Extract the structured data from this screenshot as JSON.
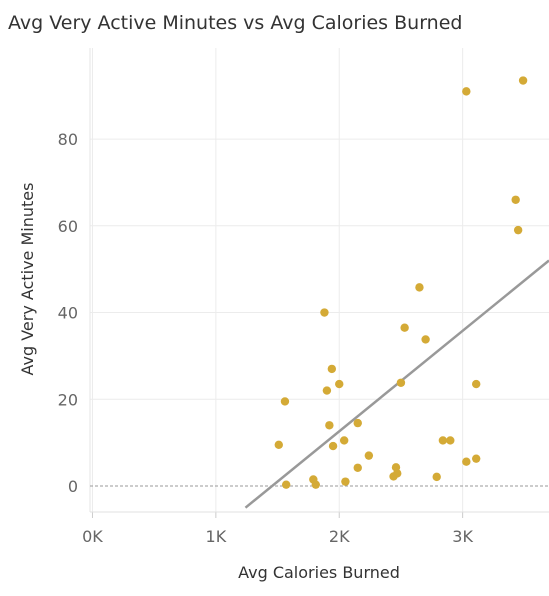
{
  "chart_data": {
    "type": "scatter",
    "title": "Avg Very Active Minutes vs Avg Calories Burned",
    "xlabel": "Avg Calories Burned",
    "ylabel": "Avg Very Active Minutes",
    "x_ticks": [
      {
        "value": 0,
        "label": "0K"
      },
      {
        "value": 1000,
        "label": "1K"
      },
      {
        "value": 2000,
        "label": "2K"
      },
      {
        "value": 3000,
        "label": "3K"
      }
    ],
    "y_ticks": [
      {
        "value": 0,
        "label": "0"
      },
      {
        "value": 20,
        "label": "20"
      },
      {
        "value": 40,
        "label": "40"
      },
      {
        "value": 60,
        "label": "60"
      },
      {
        "value": 80,
        "label": "80"
      }
    ],
    "xlim": [
      -20,
      3700
    ],
    "ylim": [
      -6,
      101
    ],
    "grid": true,
    "zero_line": true,
    "point_color": "#D4AA36",
    "trend_color": "#999999",
    "trend_line": {
      "x": [
        1240,
        3700
      ],
      "y": [
        -5,
        52
      ]
    },
    "points": [
      {
        "x": 1510,
        "y": 9.5
      },
      {
        "x": 1560,
        "y": 19.5
      },
      {
        "x": 1570,
        "y": 0.3
      },
      {
        "x": 1790,
        "y": 1.5
      },
      {
        "x": 1810,
        "y": 0.3
      },
      {
        "x": 1880,
        "y": 40.0
      },
      {
        "x": 1900,
        "y": 22.0
      },
      {
        "x": 1920,
        "y": 14.0
      },
      {
        "x": 1940,
        "y": 27.0
      },
      {
        "x": 1950,
        "y": 9.2
      },
      {
        "x": 2000,
        "y": 23.5
      },
      {
        "x": 2040,
        "y": 10.5
      },
      {
        "x": 2050,
        "y": 1.0
      },
      {
        "x": 2150,
        "y": 14.5
      },
      {
        "x": 2150,
        "y": 4.2
      },
      {
        "x": 2240,
        "y": 7.0
      },
      {
        "x": 2440,
        "y": 2.2
      },
      {
        "x": 2460,
        "y": 4.3
      },
      {
        "x": 2470,
        "y": 2.9
      },
      {
        "x": 2500,
        "y": 23.8
      },
      {
        "x": 2530,
        "y": 36.5
      },
      {
        "x": 2650,
        "y": 45.8
      },
      {
        "x": 2700,
        "y": 33.8
      },
      {
        "x": 2790,
        "y": 2.1
      },
      {
        "x": 2840,
        "y": 10.5
      },
      {
        "x": 2900,
        "y": 10.5
      },
      {
        "x": 3030,
        "y": 91.0
      },
      {
        "x": 3030,
        "y": 5.6
      },
      {
        "x": 3110,
        "y": 23.5
      },
      {
        "x": 3110,
        "y": 6.3
      },
      {
        "x": 3430,
        "y": 66.0
      },
      {
        "x": 3450,
        "y": 59.0
      },
      {
        "x": 3490,
        "y": 93.5
      }
    ]
  }
}
